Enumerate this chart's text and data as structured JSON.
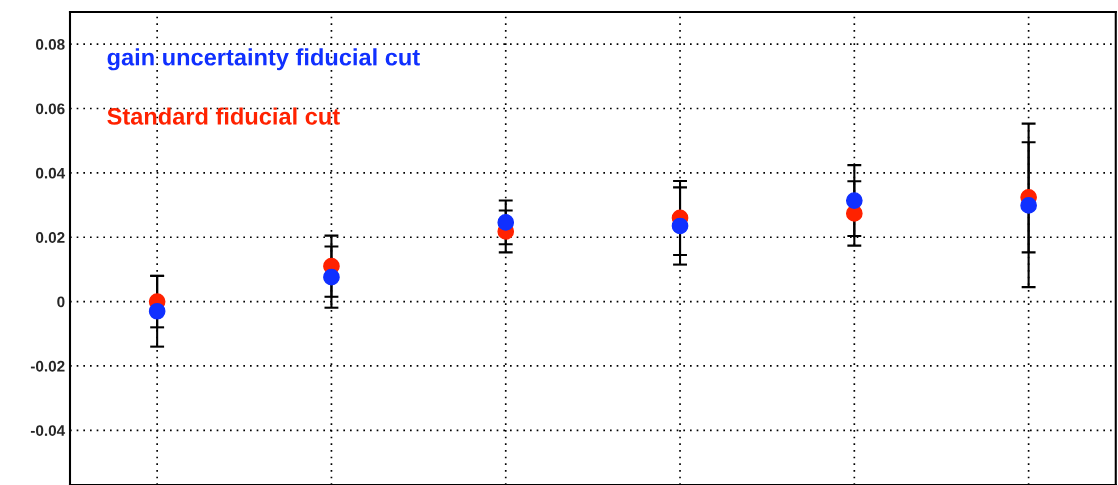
{
  "chart_data": {
    "type": "scatter",
    "categories": [
      null,
      null,
      null,
      null,
      null,
      null
    ],
    "series": [
      {
        "name": "Standard fiducial cut",
        "color": "#ff2200",
        "values": [
          0.0,
          0.011,
          0.0218,
          0.026,
          0.0274,
          0.0324
        ],
        "errors": [
          0.008,
          0.0095,
          0.0065,
          0.0115,
          0.01,
          0.0171
        ]
      },
      {
        "name": "gain uncertainty fiducial cut",
        "color": "#1030ff",
        "values": [
          -0.003,
          0.0076,
          0.0246,
          0.0235,
          0.0314,
          0.0299
        ],
        "errors": [
          0.011,
          0.0095,
          0.0068,
          0.012,
          0.011,
          0.0254
        ]
      }
    ],
    "ylim": [
      -0.057,
      0.09
    ],
    "yticks": [
      -0.04,
      -0.02,
      0,
      0.02,
      0.04,
      0.06,
      0.08
    ],
    "grid": true,
    "marker": "circle",
    "tick_labels": "y"
  }
}
